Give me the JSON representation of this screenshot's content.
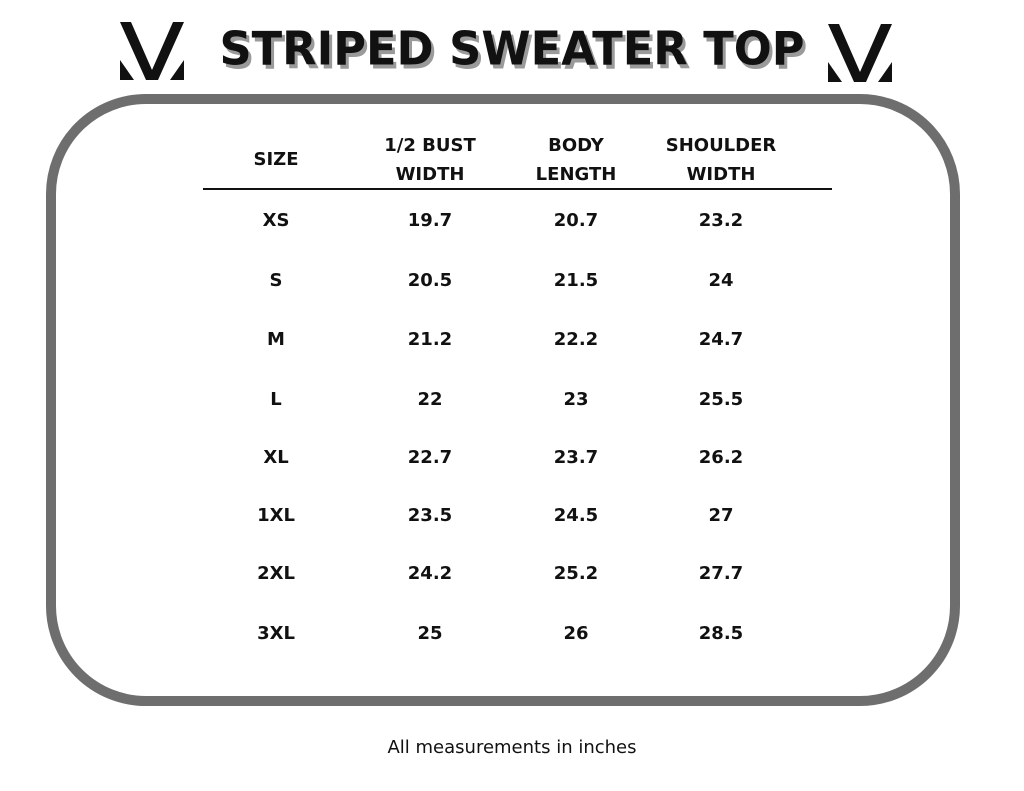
{
  "header": {
    "title": "STRIPED SWEATER TOP"
  },
  "table": {
    "columns": [
      [
        "SIZE"
      ],
      [
        "1/2 BUST",
        "WIDTH"
      ],
      [
        "BODY",
        "LENGTH"
      ],
      [
        "SHOULDER",
        "WIDTH"
      ]
    ],
    "rows": [
      [
        "XS",
        "19.7",
        "20.7",
        "23.2"
      ],
      [
        "S",
        "20.5",
        "21.5",
        "24"
      ],
      [
        "M",
        "21.2",
        "22.2",
        "24.7"
      ],
      [
        "L",
        "22",
        "23",
        "25.5"
      ],
      [
        "XL",
        "22.7",
        "23.7",
        "26.2"
      ],
      [
        "1XL",
        "23.5",
        "24.5",
        "27"
      ],
      [
        "2XL",
        "24.2",
        "25.2",
        "27.7"
      ],
      [
        "3XL",
        "25",
        "26",
        "28.5"
      ]
    ]
  },
  "footer": {
    "note": "All measurements in inches"
  }
}
